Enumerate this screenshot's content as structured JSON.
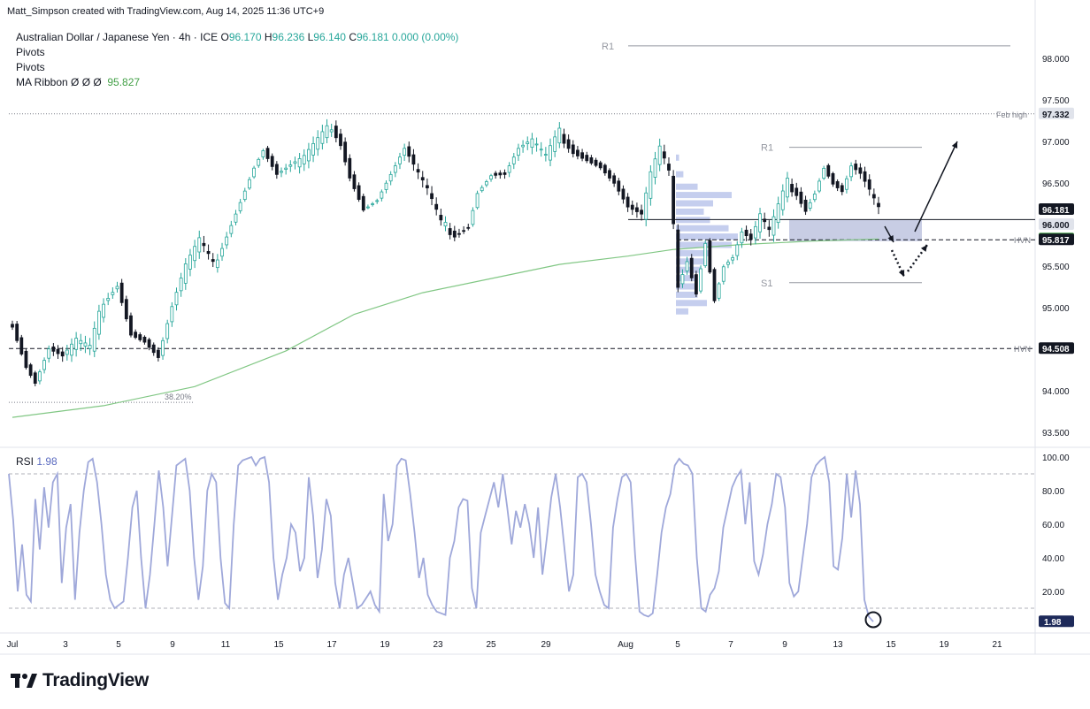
{
  "credit": "Matt_Simpson created with TradingView.com, Aug 14, 2025 11:36 UTC+9",
  "legend": {
    "symbol": "Australian Dollar / Japanese Yen · 4h · ICE",
    "ohlc": [
      {
        "k": "O",
        "v": "96.170"
      },
      {
        "k": "H",
        "v": "96.236"
      },
      {
        "k": "L",
        "v": "96.140"
      },
      {
        "k": "C",
        "v": "96.181"
      }
    ],
    "change": "0.000 (0.00%)",
    "indicators": [
      "Pivots",
      "Pivots"
    ],
    "ma_ribbon_label": "MA Ribbon  Ø  Ø  Ø",
    "ma_ribbon_value": "95.827"
  },
  "rsi_label": "RSI",
  "rsi_value": "1.98",
  "watermark": "TradingView",
  "colors": {
    "up": "#26a69a",
    "down": "#131722",
    "ma": "#81c784",
    "rsi": "#9fa8da",
    "volume_profile": "#7e93d9",
    "zone": "#b0b8d8"
  },
  "chart_data": [
    {
      "type": "candlestick",
      "symbol": "AUDJPY",
      "timeframe": "4h",
      "x_ticks": [
        "Jul",
        "3",
        "5",
        "9",
        "11",
        "15",
        "17",
        "19",
        "23",
        "25",
        "29",
        "Aug",
        "5",
        "7",
        "9",
        "13",
        "15",
        "19",
        "21"
      ],
      "y_ticks": [
        "98.000",
        "97.500",
        "97.000",
        "96.500",
        "96.000",
        "95.500",
        "95.000",
        "94.500",
        "94.000",
        "93.500"
      ],
      "ylim": [
        93.2,
        98.4
      ],
      "price_labels": [
        {
          "text": "97.332",
          "value": 97.332,
          "color": "#e0e3eb",
          "text_color": "#131722"
        },
        {
          "text": "96.181",
          "value": 96.181,
          "color": "#131722",
          "text_color": "#ffffff"
        },
        {
          "text": "96.000",
          "value": 96.0,
          "color": "#e0e3eb",
          "text_color": "#131722"
        },
        {
          "text": "95.827",
          "value": 95.827,
          "color": "#43a047",
          "text_color": "#ffffff"
        },
        {
          "text": "95.817",
          "value": 95.817,
          "color": "#131722",
          "text_color": "#ffffff"
        },
        {
          "text": "94.508",
          "value": 94.508,
          "color": "#131722",
          "text_color": "#ffffff"
        }
      ],
      "levels": [
        {
          "label": "Feb high",
          "value": 97.332,
          "style": "dotted"
        },
        {
          "label": "HVN",
          "value": 95.817,
          "style": "dashed"
        },
        {
          "label": "HVN",
          "value": 94.508,
          "style": "dashed"
        },
        {
          "label": "38.20%",
          "value": 93.86,
          "style": "dotted"
        },
        {
          "label": "",
          "value": 96.06,
          "style": "solid"
        }
      ],
      "pivots": [
        {
          "label": "R1",
          "value": 98.15
        },
        {
          "label": "R1",
          "value": 96.93
        },
        {
          "label": "S1",
          "value": 95.3
        }
      ],
      "zone": [
        95.8,
        96.06
      ],
      "anchor_closes": [
        [
          0,
          94.8
        ],
        [
          3,
          94.3
        ],
        [
          5,
          94.1
        ],
        [
          8,
          94.5
        ],
        [
          11,
          94.4
        ],
        [
          14,
          94.6
        ],
        [
          17,
          94.5
        ],
        [
          20,
          95.1
        ],
        [
          23,
          95.3
        ],
        [
          26,
          94.7
        ],
        [
          29,
          94.6
        ],
        [
          32,
          94.4
        ],
        [
          35,
          95.0
        ],
        [
          38,
          95.5
        ],
        [
          41,
          95.8
        ],
        [
          44,
          95.5
        ],
        [
          47,
          95.9
        ],
        [
          50,
          96.3
        ],
        [
          53,
          96.7
        ],
        [
          55,
          96.9
        ],
        [
          58,
          96.6
        ],
        [
          61,
          96.7
        ],
        [
          64,
          96.8
        ],
        [
          67,
          97.0
        ],
        [
          70,
          97.2
        ],
        [
          72,
          97.0
        ],
        [
          74,
          96.6
        ],
        [
          77,
          96.2
        ],
        [
          80,
          96.3
        ],
        [
          83,
          96.6
        ],
        [
          86,
          96.9
        ],
        [
          88,
          96.7
        ],
        [
          91,
          96.4
        ],
        [
          94,
          96.0
        ],
        [
          97,
          95.9
        ],
        [
          100,
          96.0
        ],
        [
          102,
          96.4
        ],
        [
          105,
          96.6
        ],
        [
          108,
          96.6
        ],
        [
          111,
          96.9
        ],
        [
          114,
          97.0
        ],
        [
          117,
          96.8
        ],
        [
          120,
          97.1
        ],
        [
          123,
          96.9
        ],
        [
          126,
          96.8
        ],
        [
          129,
          96.7
        ],
        [
          132,
          96.5
        ],
        [
          135,
          96.2
        ],
        [
          138,
          96.1
        ],
        [
          140,
          96.6
        ],
        [
          142,
          96.9
        ],
        [
          144,
          96.6
        ],
        [
          146,
          95.3
        ],
        [
          148,
          95.6
        ],
        [
          150,
          95.2
        ],
        [
          152,
          95.8
        ],
        [
          154,
          95.1
        ],
        [
          156,
          95.5
        ],
        [
          158,
          95.6
        ],
        [
          160,
          95.9
        ],
        [
          162,
          95.8
        ],
        [
          164,
          96.1
        ],
        [
          166,
          95.9
        ],
        [
          168,
          96.2
        ],
        [
          170,
          96.5
        ],
        [
          172,
          96.4
        ],
        [
          174,
          96.2
        ],
        [
          176,
          96.4
        ],
        [
          178,
          96.7
        ],
        [
          180,
          96.5
        ],
        [
          182,
          96.4
        ],
        [
          184,
          96.7
        ],
        [
          186,
          96.6
        ],
        [
          188,
          96.4
        ],
        [
          190,
          96.18
        ]
      ],
      "ma_ribbon_points": [
        [
          0,
          93.68
        ],
        [
          20,
          93.82
        ],
        [
          40,
          94.05
        ],
        [
          60,
          94.48
        ],
        [
          75,
          94.92
        ],
        [
          90,
          95.18
        ],
        [
          105,
          95.35
        ],
        [
          120,
          95.52
        ],
        [
          135,
          95.62
        ],
        [
          145,
          95.7
        ],
        [
          160,
          95.76
        ],
        [
          175,
          95.8
        ],
        [
          190,
          95.827
        ]
      ],
      "volume_profile": [
        [
          96.8,
          0.05
        ],
        [
          96.6,
          0.12
        ],
        [
          96.45,
          0.35
        ],
        [
          96.35,
          0.9
        ],
        [
          96.25,
          0.6
        ],
        [
          96.15,
          0.45
        ],
        [
          96.05,
          0.55
        ],
        [
          95.95,
          0.85
        ],
        [
          95.85,
          1.0
        ],
        [
          95.75,
          0.9
        ],
        [
          95.65,
          0.55
        ],
        [
          95.55,
          0.5
        ],
        [
          95.45,
          0.4
        ],
        [
          95.35,
          0.3
        ],
        [
          95.25,
          0.32
        ],
        [
          95.15,
          0.35
        ],
        [
          95.05,
          0.5
        ],
        [
          94.95,
          0.2
        ]
      ],
      "annotations": [
        "arrow down to 95.85",
        "arrow up to 97.00",
        "dotted arrow down to 95.30",
        "dotted arrow up to 95.75"
      ]
    },
    {
      "type": "line",
      "name": "RSI",
      "ylim": [
        0,
        100
      ],
      "y_ticks": [
        "100.00",
        "80.00",
        "60.00",
        "40.00",
        "20.00"
      ],
      "bands": [
        90,
        10
      ],
      "current": 1.98,
      "values": [
        90,
        62,
        20,
        48,
        18,
        14,
        75,
        45,
        82,
        58,
        85,
        90,
        25,
        58,
        72,
        15,
        55,
        80,
        97,
        99,
        85,
        60,
        30,
        15,
        10,
        12,
        14,
        40,
        70,
        80,
        40,
        10,
        30,
        60,
        92,
        70,
        35,
        65,
        95,
        97,
        99,
        80,
        40,
        15,
        35,
        80,
        90,
        85,
        40,
        13,
        10,
        60,
        95,
        98,
        99,
        100,
        95,
        99,
        100,
        85,
        40,
        15,
        30,
        40,
        60,
        55,
        32,
        40,
        88,
        65,
        28,
        45,
        75,
        65,
        25,
        10,
        30,
        40,
        25,
        10,
        12,
        16,
        20,
        12,
        8,
        78,
        50,
        60,
        95,
        99,
        98,
        78,
        55,
        28,
        40,
        18,
        12,
        8,
        7,
        6,
        40,
        50,
        70,
        75,
        74,
        22,
        10,
        55,
        65,
        75,
        85,
        70,
        90,
        70,
        48,
        68,
        58,
        72,
        60,
        40,
        70,
        30,
        52,
        76,
        90,
        70,
        45,
        20,
        30,
        88,
        90,
        85,
        60,
        30,
        20,
        12,
        10,
        58,
        75,
        88,
        90,
        85,
        42,
        8,
        6,
        5,
        7,
        30,
        55,
        70,
        78,
        95,
        99,
        96,
        95,
        90,
        40,
        10,
        8,
        18,
        22,
        32,
        58,
        70,
        82,
        88,
        92,
        60,
        85,
        38,
        30,
        42,
        60,
        72,
        90,
        88,
        70,
        25,
        17,
        20,
        40,
        60,
        88,
        95,
        98,
        100,
        85,
        35,
        33,
        52,
        90,
        64,
        92,
        72,
        15,
        5,
        1.98
      ]
    }
  ]
}
